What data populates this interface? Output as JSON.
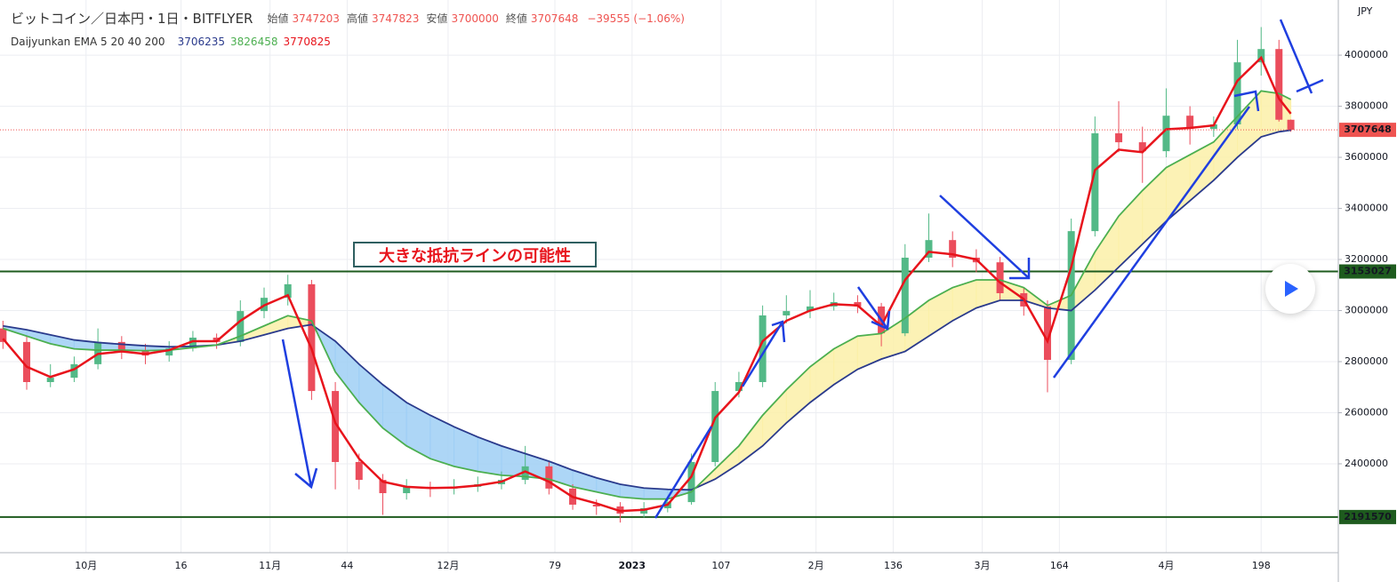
{
  "chart_data": {
    "type": "candlestick",
    "title": "ビットコイン／日本円・1日・BITFLYER",
    "ohlc_legend": [
      {
        "label": "始値",
        "value": 3747203
      },
      {
        "label": "高値",
        "value": 3747823
      },
      {
        "label": "安値",
        "value": 3700000
      },
      {
        "label": "終値",
        "value": 3707648
      }
    ],
    "change": "−39555 (−1.06%)",
    "indicator": "Daijyunkan EMA 5 20 40 200",
    "axis_unit": "JPY",
    "annotation": "大きな抵抗ラインの可能性",
    "up_color": "#53b987",
    "down_color": "#eb4d5c",
    "x": [
      -14,
      -10,
      -6,
      -2,
      2,
      6,
      10,
      14,
      18,
      22,
      26,
      30,
      34,
      38,
      42,
      46,
      50,
      54,
      58,
      62,
      66,
      70,
      74,
      78,
      82,
      86,
      90,
      94,
      98,
      102,
      106,
      110,
      114,
      118,
      122,
      126,
      130,
      134,
      138,
      142,
      146,
      150,
      154,
      158,
      162,
      166,
      170,
      174,
      178,
      182,
      186,
      190,
      194,
      198,
      201,
      203
    ],
    "open": [
      2930000,
      2877000,
      2720000,
      2737000,
      2790000,
      2877000,
      2842000,
      2824000,
      2852000,
      2894000,
      2877000,
      2998000,
      3050000,
      3103000,
      2685000,
      2407000,
      2337000,
      2285000,
      2310000,
      2303000,
      2310000,
      2320000,
      2337000,
      2390000,
      2303000,
      2240000,
      2233000,
      2205000,
      2226000,
      2250000,
      2407000,
      2685000,
      2720000,
      2981000,
      2998000,
      3016000,
      3033000,
      3016000,
      2911000,
      3207000,
      3276000,
      3207000,
      3189000,
      3068000,
      3016000,
      2807000,
      3311000,
      3694000,
      3659000,
      3624000,
      3763000,
      3711000,
      3729000,
      3972000,
      4024000,
      3747203
    ],
    "high": [
      2960000,
      2900000,
      2790000,
      2820000,
      2930000,
      2900000,
      2870000,
      2880000,
      2920000,
      2910000,
      3040000,
      3090000,
      3140000,
      3120000,
      2720000,
      2440000,
      2360000,
      2340000,
      2330000,
      2340000,
      2350000,
      2370000,
      2470000,
      2410000,
      2320000,
      2260000,
      2250000,
      2250000,
      2270000,
      2440000,
      2720000,
      2760000,
      3020000,
      3060000,
      3080000,
      3070000,
      3060000,
      3030000,
      3260000,
      3380000,
      3310000,
      3240000,
      3210000,
      3090000,
      3040000,
      3360000,
      3760000,
      3820000,
      3720000,
      3870000,
      3800000,
      3760000,
      4060000,
      4110000,
      4060000,
      3747823
    ],
    "low": [
      2850000,
      2690000,
      2700000,
      2720000,
      2770000,
      2810000,
      2790000,
      2800000,
      2840000,
      2850000,
      2860000,
      2970000,
      3020000,
      2650000,
      2300000,
      2300000,
      2200000,
      2260000,
      2270000,
      2280000,
      2290000,
      2300000,
      2320000,
      2280000,
      2220000,
      2200000,
      2170000,
      2190000,
      2210000,
      2240000,
      2390000,
      2660000,
      2700000,
      2950000,
      2970000,
      3000000,
      2990000,
      2860000,
      2900000,
      3190000,
      3170000,
      3150000,
      3040000,
      2980000,
      2680000,
      2790000,
      3290000,
      3620000,
      3500000,
      3600000,
      3650000,
      3680000,
      3710000,
      3920000,
      3740000,
      3700000
    ],
    "close": [
      2877000,
      2720000,
      2737000,
      2790000,
      2877000,
      2842000,
      2824000,
      2852000,
      2894000,
      2877000,
      2998000,
      3050000,
      3103000,
      2685000,
      2407000,
      2337000,
      2285000,
      2310000,
      2303000,
      2310000,
      2320000,
      2337000,
      2390000,
      2303000,
      2240000,
      2233000,
      2205000,
      2226000,
      2250000,
      2407000,
      2685000,
      2720000,
      2981000,
      2998000,
      3016000,
      3033000,
      3016000,
      2911000,
      3207000,
      3276000,
      3207000,
      3189000,
      3068000,
      3016000,
      2807000,
      3311000,
      3694000,
      3659000,
      3624000,
      3763000,
      3711000,
      3729000,
      3972000,
      4024000,
      3747203,
      3707648
    ],
    "series": [
      {
        "color": "#2a3a8c",
        "values": [
          2940000,
          2925000,
          2905000,
          2885000,
          2875000,
          2868000,
          2862000,
          2858000,
          2860000,
          2865000,
          2880000,
          2905000,
          2930000,
          2945000,
          2880000,
          2790000,
          2710000,
          2640000,
          2590000,
          2545000,
          2505000,
          2470000,
          2440000,
          2410000,
          2375000,
          2345000,
          2320000,
          2305000,
          2300000,
          2298000,
          2340000,
          2400000,
          2470000,
          2560000,
          2640000,
          2710000,
          2770000,
          2810000,
          2840000,
          2900000,
          2960000,
          3010000,
          3040000,
          3040000,
          3010000,
          3000000,
          3080000,
          3170000,
          3260000,
          3350000,
          3430000,
          3510000,
          3600000,
          3680000,
          3700000,
          3706235
        ]
      },
      {
        "color": "#4caf50",
        "values": [
          2930000,
          2900000,
          2870000,
          2850000,
          2845000,
          2845000,
          2843000,
          2845000,
          2855000,
          2865000,
          2900000,
          2940000,
          2980000,
          2960000,
          2760000,
          2640000,
          2540000,
          2470000,
          2420000,
          2390000,
          2370000,
          2355000,
          2350000,
          2340000,
          2310000,
          2290000,
          2270000,
          2262000,
          2262000,
          2290000,
          2380000,
          2470000,
          2590000,
          2690000,
          2780000,
          2850000,
          2900000,
          2910000,
          2970000,
          3040000,
          3090000,
          3120000,
          3120000,
          3090000,
          3020000,
          3060000,
          3230000,
          3370000,
          3470000,
          3560000,
          3610000,
          3660000,
          3760000,
          3860000,
          3850000,
          3826458
        ]
      },
      {
        "color": "#e8141c",
        "values": [
          2890000,
          2780000,
          2740000,
          2770000,
          2830000,
          2840000,
          2830000,
          2845000,
          2880000,
          2880000,
          2960000,
          3020000,
          3060000,
          2850000,
          2560000,
          2420000,
          2330000,
          2310000,
          2305000,
          2307000,
          2315000,
          2330000,
          2370000,
          2330000,
          2270000,
          2245000,
          2215000,
          2220000,
          2240000,
          2350000,
          2580000,
          2680000,
          2880000,
          2960000,
          3000000,
          3025000,
          3020000,
          2940000,
          3120000,
          3230000,
          3220000,
          3200000,
          3110000,
          3045000,
          2880000,
          3170000,
          3550000,
          3630000,
          3620000,
          3710000,
          3715000,
          3725000,
          3900000,
          3990000,
          3830000,
          3770825
        ]
      }
    ],
    "cloud_colors": [
      "#9fcff5",
      "#fbf0a8"
    ],
    "hlines": [
      {
        "value": 3153027,
        "color": "#1e5b1e"
      },
      {
        "value": 2191570,
        "color": "#1e5b1e"
      }
    ],
    "last_price_color": "#ef5350",
    "xlim": [
      -14.5,
      211
    ],
    "ylim": [
      2052000,
      4216000
    ],
    "yticks": [
      2400000,
      2600000,
      2800000,
      3000000,
      3200000,
      3400000,
      3600000,
      3800000,
      4000000
    ],
    "xticks": [
      {
        "value": 0,
        "label": "10月"
      },
      16,
      {
        "value": 31,
        "label": "11月"
      },
      44,
      {
        "value": 61,
        "label": "12月"
      },
      79,
      {
        "value": 92,
        "label": "2023"
      },
      107,
      {
        "value": 123,
        "label": "2月"
      },
      136,
      {
        "value": 151,
        "label": "3月"
      },
      164,
      {
        "value": 182,
        "label": "4月"
      },
      198
    ],
    "grid": true
  }
}
